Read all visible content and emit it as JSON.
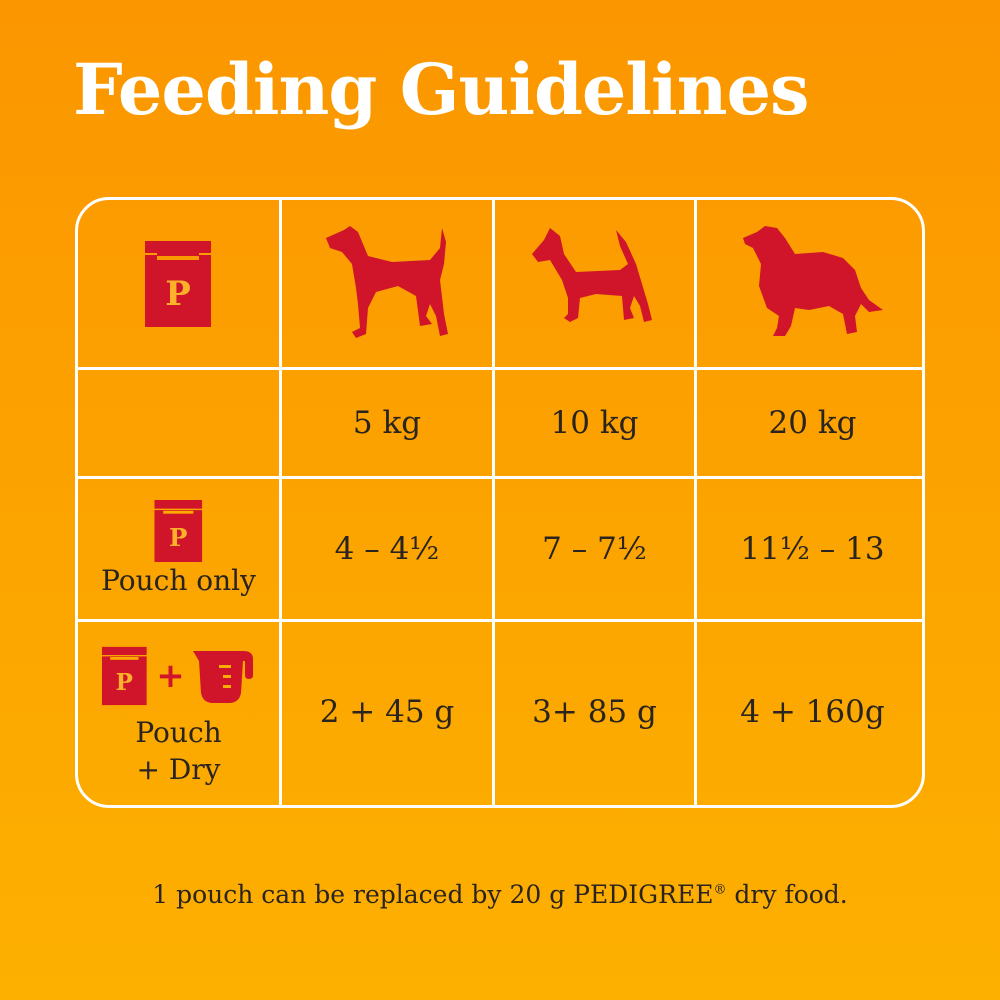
{
  "title": "Feeding Guidelines",
  "colors": {
    "accent_red": "#d0142a",
    "background": "#fca300",
    "pouch_letter": "#fcb12a"
  },
  "icons": {
    "pouch": "pouch-icon",
    "measuring_cup": "measuring-cup-icon",
    "dogs": [
      "small-terrier-icon",
      "fox-terrier-icon",
      "collie-icon"
    ]
  },
  "pouch_letter": "P",
  "table": {
    "weights": [
      "5 kg",
      "10 kg",
      "20 kg"
    ],
    "rows": [
      {
        "label": "Pouch only",
        "values": [
          "4 – 4½",
          "7 – 7½",
          "11½ – 13"
        ]
      },
      {
        "label_line1": "Pouch",
        "label_line2": "+ Dry",
        "plus": "+",
        "values": [
          "2 + 45 g",
          "3+ 85 g",
          "4 + 160g"
        ]
      }
    ]
  },
  "footnote": {
    "text": "1 pouch can be replaced by 20 g PEDIGREE",
    "reg": "®",
    "tail": " dry food."
  }
}
